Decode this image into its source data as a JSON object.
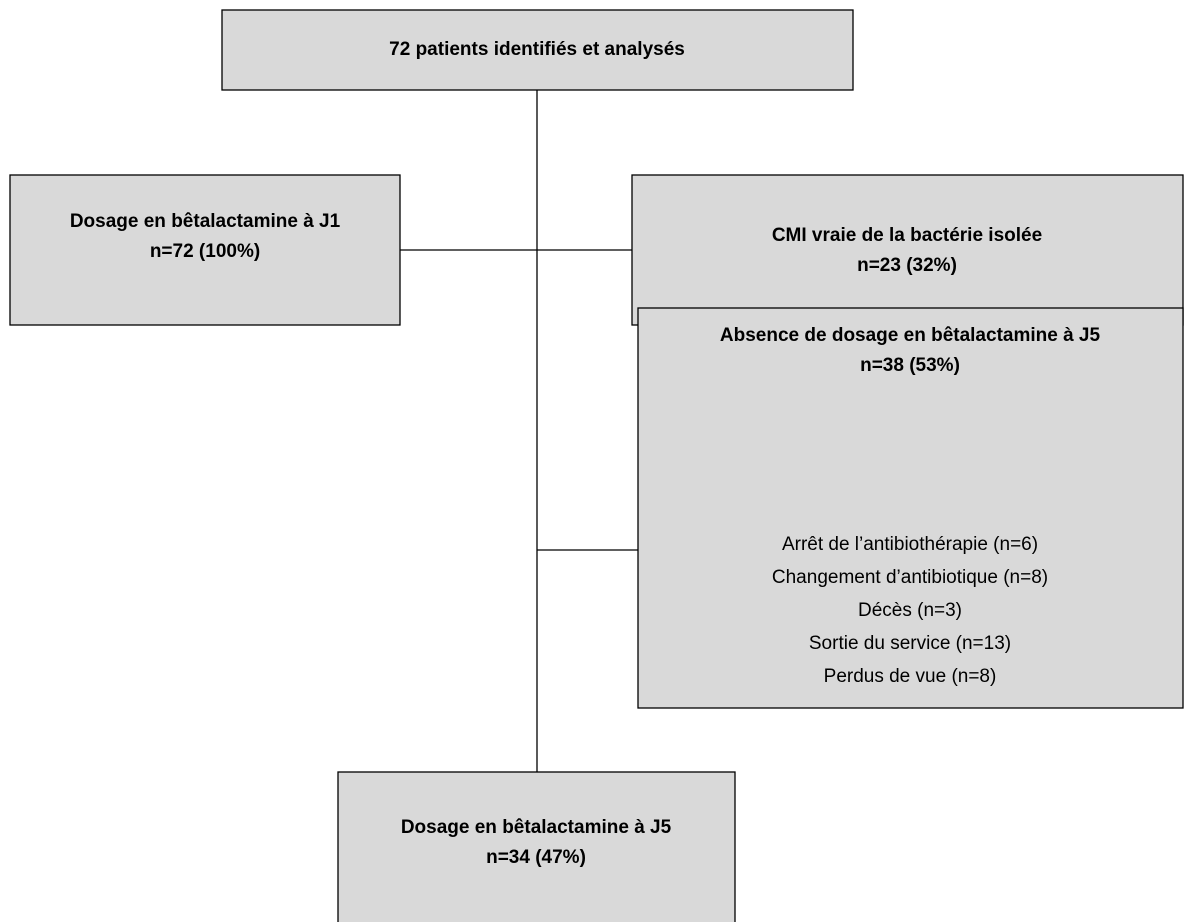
{
  "nodes": [
    {
      "lines": [
        "72 patients identifiés et analysés"
      ]
    },
    {
      "lines": [
        "Dosage en bêtalactamine à J1",
        "n=72 (100%)"
      ]
    },
    {
      "lines": [
        "CMI vraie de la bactérie isolée",
        "n=23 (32%)"
      ]
    },
    {
      "lines": [
        "Absence de dosage en bêtalactamine à J5",
        "n=38 (53%)"
      ],
      "items": [
        "Arrêt de l’antibiothérapie (n=6)",
        "Changement d’antibiotique (n=8)",
        "Décès (n=3)",
        "Sortie du service (n=13)",
        "Perdus de vue (n=8)"
      ]
    },
    {
      "lines": [
        "Dosage en bêtalactamine à J5",
        "n=34 (47%)"
      ]
    }
  ]
}
